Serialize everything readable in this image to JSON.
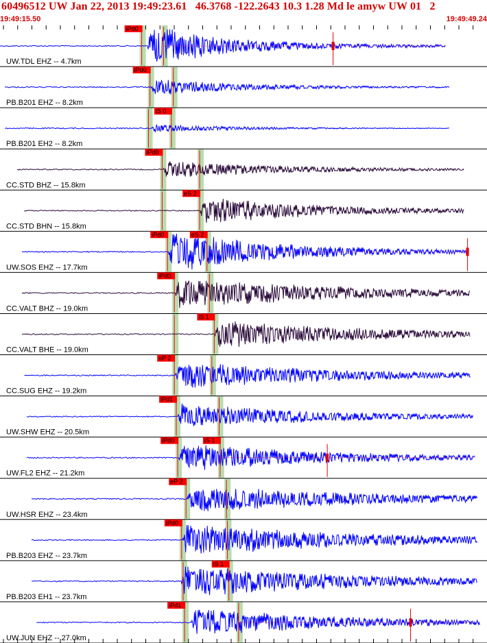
{
  "header": {
    "title": "60496512 UW Jan 22, 2013 19:49:23.61   46.3768 -122.2643 10.3 1.28 Md le amyw UW 01   2",
    "time_start": "19:49:15.50",
    "time_end": "19:49:49.24"
  },
  "colors": {
    "trace_vertical": "#0000ff",
    "trace_horizontal": "#2a0a3a",
    "pick_box": "#ff0000",
    "pick_window": "#b8ddb0",
    "grid": "#000000",
    "header_text": "#d40000",
    "coda_tail": "#c02060"
  },
  "chart_data": {
    "type": "line",
    "title": "60496512 UW Jan 22, 2013 19:49:23.61   46.3768 -122.2643 10.3 1.28 Md le amyw UW 01   2",
    "x_range": [
      "19:49:15.50",
      "19:49:49.24"
    ],
    "series": [
      {
        "name": "UW.TDL EHZ -- 4.7km",
        "style": "blue",
        "noise_start": 0.0,
        "onset": 0.303,
        "end": 0.915,
        "amp": 1.3,
        "decay": 0.16,
        "coda_mark": 0.684,
        "picks": [
          {
            "label": "iPd0",
            "x": 0.291
          },
          {
            "label": "",
            "x": 0.336
          }
        ]
      },
      {
        "name": "PB.B201 EHZ -- 8.2km",
        "style": "blue",
        "noise_start": 0.01,
        "onset": 0.31,
        "end": 0.923,
        "amp": 0.55,
        "decay": 0.18,
        "picks": [
          {
            "label": "iPd0",
            "x": 0.308
          },
          {
            "label": "",
            "x": 0.356
          }
        ]
      },
      {
        "name": "PB.B201 EH2 -- 8.2km",
        "style": "blue",
        "noise_start": 0.01,
        "onset": 0.31,
        "end": 0.923,
        "amp": 0.25,
        "decay": 0.18,
        "picks": [
          {
            "label": "",
            "x": 0.305
          },
          {
            "label": "iS 0",
            "x": 0.352
          }
        ]
      },
      {
        "name": "CC.STD BHZ -- 15.8km",
        "style": "dark",
        "noise_start": 0.035,
        "onset": 0.335,
        "end": 0.953,
        "amp": 0.55,
        "decay": 0.25,
        "picks": [
          {
            "label": "iPd0",
            "x": 0.333
          },
          {
            "label": "",
            "x": 0.41
          }
        ]
      },
      {
        "name": "CC.STD BHN -- 15.8km",
        "style": "dark",
        "noise_start": 0.05,
        "onset": 0.41,
        "end": 0.953,
        "amp": 0.85,
        "decay": 0.25,
        "picks": [
          {
            "label": "",
            "x": 0.333
          },
          {
            "label": "eS 2",
            "x": 0.41
          }
        ]
      },
      {
        "name": "UW.SOS EHZ -- 17.7km",
        "style": "blue",
        "noise_start": 0.045,
        "onset": 0.346,
        "end": 0.96,
        "amp": 1.3,
        "decay": 0.22,
        "coda_mark": 0.96,
        "picks": [
          {
            "label": "iPd0",
            "x": 0.344
          },
          {
            "label": "eS 2",
            "x": 0.425
          }
        ]
      },
      {
        "name": "CC.VALT BHZ -- 19.0km",
        "style": "dark",
        "noise_start": 0.045,
        "onset": 0.36,
        "end": 0.965,
        "amp": 1.0,
        "decay": 0.33,
        "picks": [
          {
            "label": "iPd0",
            "x": 0.358
          },
          {
            "label": "",
            "x": 0.43
          }
        ]
      },
      {
        "name": "CC.VALT BHE -- 19.0km",
        "style": "dark",
        "noise_start": 0.045,
        "onset": 0.44,
        "end": 0.965,
        "amp": 0.85,
        "decay": 0.33,
        "picks": [
          {
            "label": "",
            "x": 0.358
          },
          {
            "label": "iS 1",
            "x": 0.44
          }
        ]
      },
      {
        "name": "CC.SUG EHZ -- 19.2km",
        "style": "blue",
        "noise_start": 0.05,
        "onset": 0.36,
        "end": 0.967,
        "amp": 0.85,
        "decay": 0.34,
        "picks": [
          {
            "label": "eP 2",
            "x": 0.358
          },
          {
            "label": "",
            "x": 0.435
          }
        ]
      },
      {
        "name": "UW.SHW EHZ -- 20.5km",
        "style": "blue",
        "noise_start": 0.055,
        "onset": 0.365,
        "end": 0.972,
        "amp": 0.8,
        "decay": 0.3,
        "picks": [
          {
            "label": "iPd1",
            "x": 0.362
          },
          {
            "label": "",
            "x": 0.45
          }
        ]
      },
      {
        "name": "UW.FL2 EHZ -- 21.2km",
        "style": "blue",
        "noise_start": 0.055,
        "onset": 0.367,
        "end": 0.976,
        "amp": 0.9,
        "decay": 0.3,
        "coda_mark": 0.672,
        "picks": [
          {
            "label": "iPd0",
            "x": 0.365
          },
          {
            "label": "iS 1",
            "x": 0.452
          }
        ]
      },
      {
        "name": "UW.HSR EHZ -- 23.4km",
        "style": "blue",
        "noise_start": 0.065,
        "onset": 0.384,
        "end": 0.98,
        "amp": 0.85,
        "decay": 0.38,
        "picks": [
          {
            "label": "eP 2",
            "x": 0.382
          },
          {
            "label": "",
            "x": 0.465
          }
        ]
      },
      {
        "name": "PB.B203 EHZ -- 23.7km",
        "style": "blue",
        "noise_start": 0.065,
        "onset": 0.375,
        "end": 0.98,
        "amp": 1.0,
        "decay": 0.36,
        "picks": [
          {
            "label": "iPd0",
            "x": 0.373
          },
          {
            "label": "",
            "x": 0.467
          }
        ]
      },
      {
        "name": "PB.B203 EH1 -- 23.7km",
        "style": "blue",
        "noise_start": 0.065,
        "onset": 0.372,
        "end": 0.98,
        "amp": 1.0,
        "decay": 0.36,
        "picks": [
          {
            "label": "",
            "x": 0.376
          },
          {
            "label": "iS 1",
            "x": 0.47
          }
        ]
      },
      {
        "name": "UW.JUN EHZ -- 27.0km",
        "style": "blue",
        "noise_start": 0.075,
        "onset": 0.393,
        "end": 0.985,
        "amp": 0.9,
        "decay": 0.3,
        "coda_mark": 0.843,
        "picks": [
          {
            "label": "iPd1",
            "x": 0.379
          },
          {
            "label": "",
            "x": 0.49
          }
        ]
      }
    ]
  }
}
